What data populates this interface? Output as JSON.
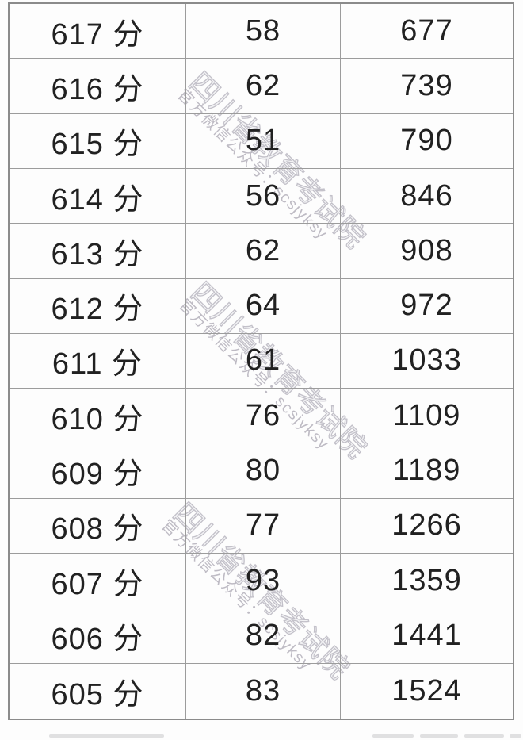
{
  "page": {
    "background": "#fdfdfd"
  },
  "table": {
    "border_color": "#8f8f8f",
    "text_color": "#212121",
    "rows": [
      {
        "score": "617 分",
        "count": "58",
        "cumulative": "677"
      },
      {
        "score": "616 分",
        "count": "62",
        "cumulative": "739"
      },
      {
        "score": "615 分",
        "count": "51",
        "cumulative": "790"
      },
      {
        "score": "614 分",
        "count": "56",
        "cumulative": "846"
      },
      {
        "score": "613 分",
        "count": "62",
        "cumulative": "908"
      },
      {
        "score": "612 分",
        "count": "64",
        "cumulative": "972"
      },
      {
        "score": "611 分",
        "count": "61",
        "cumulative": "1033"
      },
      {
        "score": "610 分",
        "count": "76",
        "cumulative": "1109"
      },
      {
        "score": "609 分",
        "count": "80",
        "cumulative": "1189"
      },
      {
        "score": "608 分",
        "count": "77",
        "cumulative": "1266"
      },
      {
        "score": "607 分",
        "count": "93",
        "cumulative": "1359"
      },
      {
        "score": "606 分",
        "count": "82",
        "cumulative": "1441"
      },
      {
        "score": "605 分",
        "count": "83",
        "cumulative": "1524"
      }
    ]
  },
  "watermark": {
    "agency": "四川省教育考试院",
    "subtitle": "官方微信公众号：scsjyksy",
    "color": "#b7b2be"
  }
}
